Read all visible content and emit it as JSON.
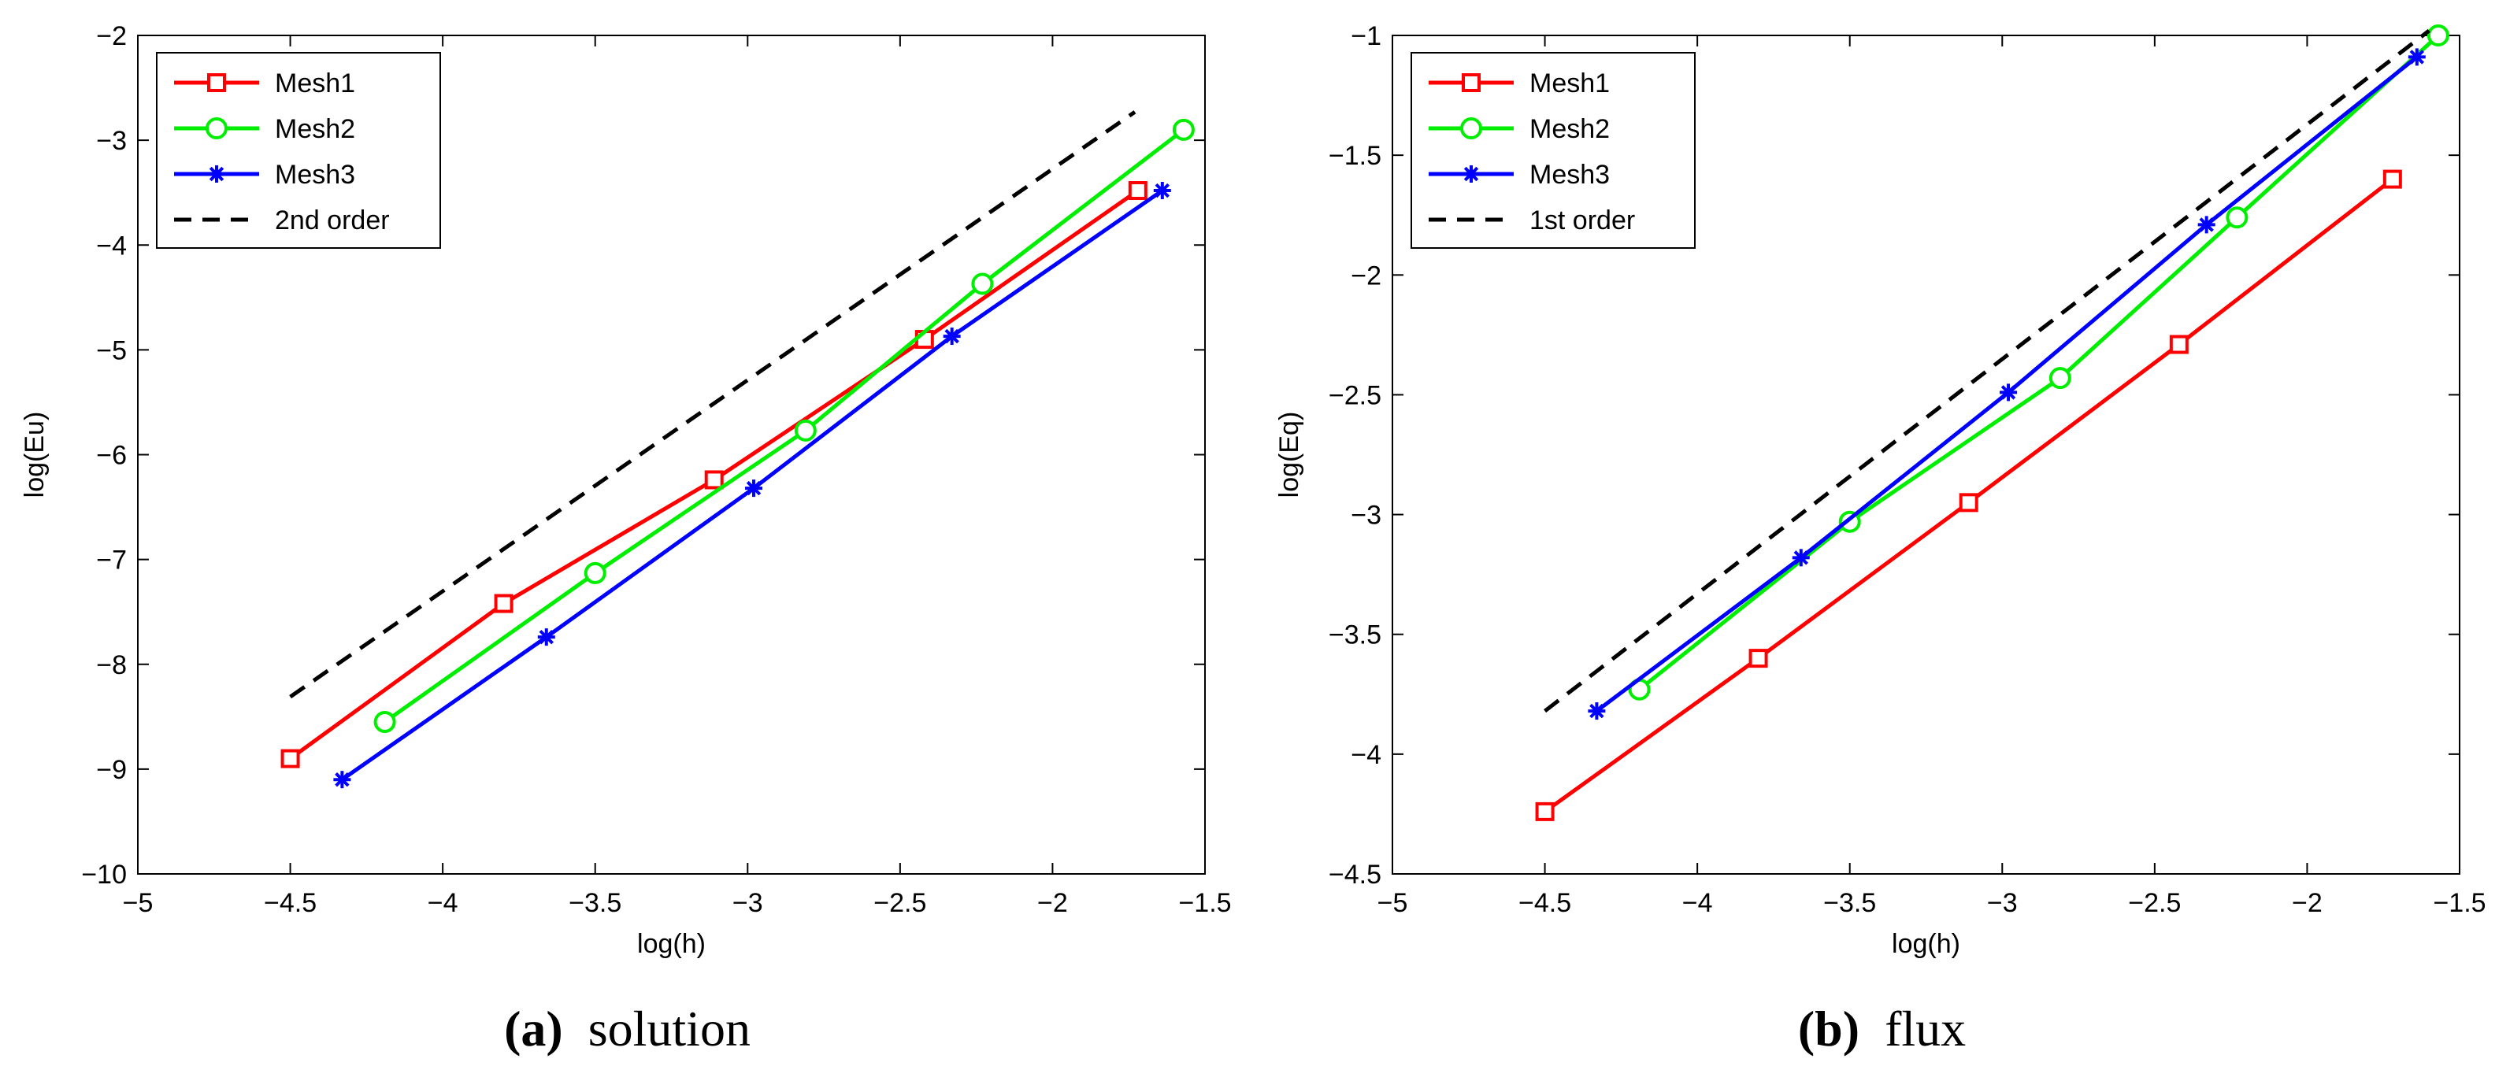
{
  "chart_data": [
    {
      "type": "line",
      "caption": {
        "tag": "(a)",
        "text": "solution"
      },
      "xlabel": "log(h)",
      "ylabel": "log(Eu)",
      "xlim": [
        -5,
        -1.5
      ],
      "ylim": [
        -10,
        -2
      ],
      "xticks": [
        -5,
        -4.5,
        -4,
        -3.5,
        -3,
        -2.5,
        -2,
        -1.5
      ],
      "yticks": [
        -10,
        -9,
        -8,
        -7,
        -6,
        -5,
        -4,
        -3,
        -2
      ],
      "legend_position": "top-left",
      "series": [
        {
          "name": "Mesh1",
          "color": "#ff0000",
          "marker": "square",
          "x": [
            -4.5,
            -3.8,
            -3.11,
            -2.42,
            -1.72
          ],
          "y": [
            -8.9,
            -7.42,
            -6.24,
            -4.9,
            -3.48
          ]
        },
        {
          "name": "Mesh2",
          "color": "#00ee00",
          "marker": "circle",
          "x": [
            -4.19,
            -3.5,
            -2.81,
            -2.23,
            -1.57
          ],
          "y": [
            -8.55,
            -7.13,
            -5.77,
            -4.37,
            -2.9
          ]
        },
        {
          "name": "Mesh3",
          "color": "#0000ff",
          "marker": "star",
          "x": [
            -4.33,
            -3.66,
            -2.98,
            -2.33,
            -1.64
          ],
          "y": [
            -9.1,
            -7.74,
            -6.32,
            -4.87,
            -3.48
          ]
        },
        {
          "name": "2nd order",
          "color": "#000000",
          "marker": "none",
          "dashed": true,
          "x": [
            -4.5,
            -1.73
          ],
          "y": [
            -8.31,
            -2.73
          ]
        }
      ]
    },
    {
      "type": "line",
      "caption": {
        "tag": "(b)",
        "text": "flux"
      },
      "xlabel": "log(h)",
      "ylabel": "log(Eq)",
      "xlim": [
        -5,
        -1.5
      ],
      "ylim": [
        -4.5,
        -1
      ],
      "xticks": [
        -5,
        -4.5,
        -4,
        -3.5,
        -3,
        -2.5,
        -2,
        -1.5
      ],
      "yticks": [
        -4.5,
        -4,
        -3.5,
        -3,
        -2.5,
        -2,
        -1.5,
        -1
      ],
      "legend_position": "top-left",
      "series": [
        {
          "name": "Mesh1",
          "color": "#ff0000",
          "marker": "square",
          "x": [
            -4.5,
            -3.8,
            -3.11,
            -2.42,
            -1.72
          ],
          "y": [
            -4.24,
            -3.6,
            -2.95,
            -2.29,
            -1.6
          ]
        },
        {
          "name": "Mesh2",
          "color": "#00ee00",
          "marker": "circle",
          "x": [
            -4.19,
            -3.5,
            -2.81,
            -2.23,
            -1.57
          ],
          "y": [
            -3.73,
            -3.03,
            -2.43,
            -1.76,
            -1.0
          ]
        },
        {
          "name": "Mesh3",
          "color": "#0000ff",
          "marker": "star",
          "x": [
            -4.33,
            -3.66,
            -2.98,
            -2.33,
            -1.64
          ],
          "y": [
            -3.82,
            -3.18,
            -2.49,
            -1.79,
            -1.09
          ]
        },
        {
          "name": "1st order",
          "color": "#000000",
          "marker": "none",
          "dashed": true,
          "x": [
            -4.5,
            -1.6
          ],
          "y": [
            -3.82,
            -0.98
          ]
        }
      ]
    }
  ]
}
